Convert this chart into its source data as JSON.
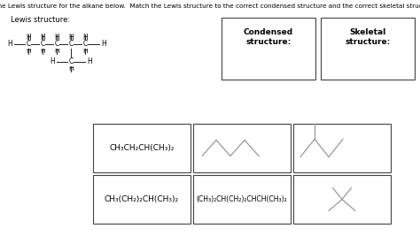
{
  "title_text": "Use the Lewis structure for the alkane below.  Match the Lewis structure to the correct condensed structure and the correct skeletal structure.",
  "lewis_label": "Lewis structure:",
  "condensed_label": "Condensed\nstructure:",
  "skeletal_label": "Skeletal\nstructure:",
  "box1_text": "CH₃CH₂CH(CH₃)₂",
  "box4_text": "CH₃(CH₂)₂CH(CH₃)₂",
  "box5_text": "(CH₃)₂CH(CH₂)₂CHCH(CH₃)₂",
  "line_color": "#999999",
  "text_color": "#000000",
  "bg_color": "#ffffff"
}
